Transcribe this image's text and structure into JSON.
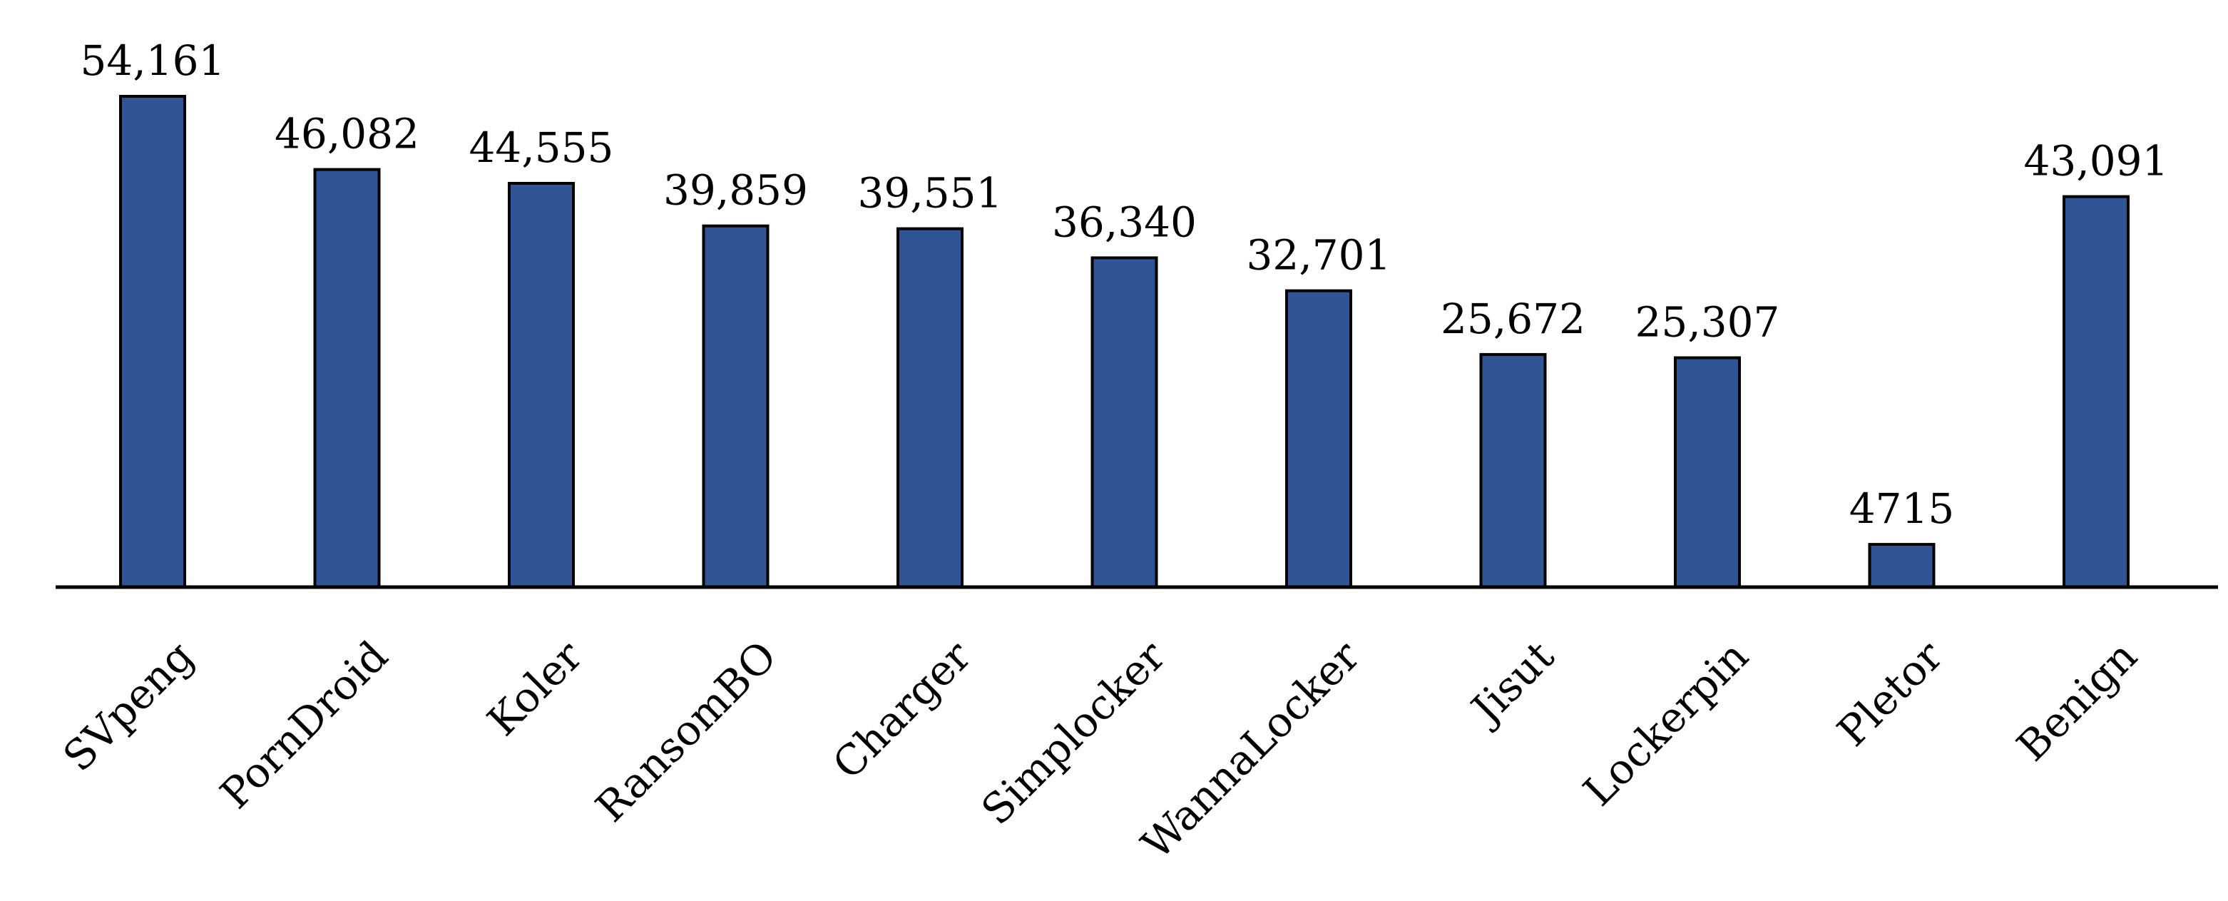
{
  "chart_data": {
    "type": "bar",
    "title": "",
    "xlabel": "",
    "ylabel": "",
    "categories": [
      "SVpeng",
      "PornDroid",
      "Koler",
      "RansomBO",
      "Charger",
      "Simplocker",
      "WannaLocker",
      "Jisut",
      "Lockerpin",
      "Pletor",
      "Benign"
    ],
    "values": [
      54161,
      46082,
      44555,
      39859,
      39551,
      36340,
      32701,
      25672,
      25307,
      4715,
      43091
    ],
    "value_labels": [
      "54,161",
      "46,082",
      "44,555",
      "39,859",
      "39,551",
      "36,340",
      "32,701",
      "25,672",
      "25,307",
      "4715",
      "43,091"
    ],
    "ylim": [
      0,
      54161
    ],
    "grid": false,
    "legend": "none",
    "bar_color": "#2f5597",
    "tick_label_rotation_deg": -45
  }
}
